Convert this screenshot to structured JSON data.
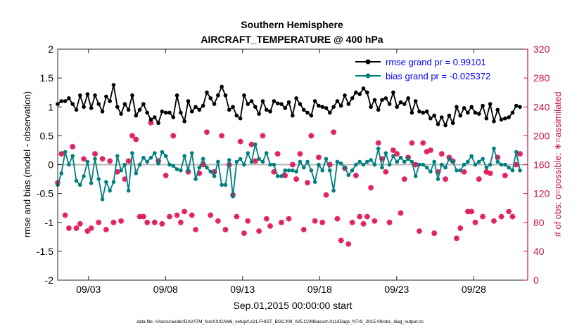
{
  "chart_data": {
    "type": "line",
    "title": "Southern Hemisphere",
    "subtitle": "AIRCRAFT_TEMPERATURE @ 400 hPa",
    "xlabel": "Sep.01,2015 00:00:00 start",
    "ylabel_left": "rmse and bias (model - observation)",
    "ylabel_right": "# of obs: o=possible; ∗=assimilated",
    "footnote": "data file: /Users/raeder/DAI/ATM_forcXX/CAM6_setup/f.e21.FHIST_BGC.f09_025.CAM6assim.011/Diags_NTrS_2015-09/obs_diag_output.nc",
    "x_day_range": [
      1.0,
      31.5
    ],
    "ylim_left": [
      -2,
      2
    ],
    "ylim_right": [
      0,
      320
    ],
    "yticks_left": [
      "-2",
      "-1.5",
      "-1",
      "-0.5",
      "0",
      "0.5",
      "1",
      "1.5",
      "2"
    ],
    "yticks_right": [
      "0",
      "40",
      "80",
      "120",
      "160",
      "200",
      "240",
      "280",
      "320"
    ],
    "xticks": [
      {
        "day": 3,
        "label": "09/03"
      },
      {
        "day": 8,
        "label": "09/08"
      },
      {
        "day": 13,
        "label": "09/13"
      },
      {
        "day": 18,
        "label": "09/18"
      },
      {
        "day": 23,
        "label": "09/23"
      },
      {
        "day": 28,
        "label": "09/28"
      }
    ],
    "colors": {
      "rmse": "#000000",
      "bias": "#007f7f",
      "obs": "#e0185c",
      "right_axis": "#c8104f",
      "zero_line": "#b4b4b4",
      "legend_text": "#0000ff"
    },
    "series": [
      {
        "name": "rmse grand pr = 0.99101",
        "axis": "left",
        "marker": "circle",
        "values": [
          1.05,
          1.1,
          1.1,
          1.15,
          1.05,
          0.95,
          1.2,
          1.0,
          1.22,
          0.98,
          1.2,
          1.05,
          0.92,
          1.18,
          1.1,
          1.38,
          1.0,
          0.88,
          1.05,
          0.95,
          1.2,
          0.85,
          0.95,
          1.05,
          0.9,
          0.78,
          0.82,
          0.72,
          0.92,
          0.9,
          0.9,
          0.82,
          1.2,
          0.9,
          0.75,
          1.1,
          0.92,
          1.0,
          0.95,
          1.02,
          1.25,
          1.15,
          1.05,
          1.2,
          1.35,
          1.2,
          0.95,
          1.0,
          0.85,
          0.8,
          1.2,
          1.05,
          1.1,
          1.0,
          0.88,
          1.1,
          0.95,
          0.92,
          1.1,
          1.06,
          1.05,
          0.98,
          1.08,
          0.85,
          1.15,
          1.05,
          0.95,
          0.9,
          0.85,
          1.1,
          1.02,
          1.0,
          0.98,
          0.9,
          1.0,
          1.1,
          1.02,
          1.2,
          1.05,
          1.15,
          1.25,
          1.22,
          1.32,
          1.25,
          1.0,
          1.12,
          0.95,
          1.12,
          1.15,
          1.05,
          1.25,
          1.0,
          1.08,
          1.05,
          1.15,
          0.9,
          1.1,
          0.92,
          0.9,
          0.92,
          0.8,
          0.85,
          0.7,
          0.82,
          0.68,
          0.85,
          0.72,
          1.0,
          0.85,
          0.98,
          0.9,
          1.0,
          0.9,
          0.88,
          1.02,
          0.8,
          1.05,
          0.75,
          0.95,
          0.78,
          0.8,
          0.82,
          0.9,
          1.02,
          1.0
        ]
      },
      {
        "name": "bias grand pr = -0.025372",
        "axis": "left",
        "marker": "circle",
        "values": [
          -0.35,
          -0.15,
          0.22,
          0.0,
          0.15,
          -0.28,
          -0.35,
          -0.2,
          0.05,
          -0.32,
          0.1,
          -0.25,
          -0.6,
          -0.3,
          -0.45,
          -0.3,
          0.15,
          -0.1,
          0.0,
          -0.45,
          0.2,
          -0.15,
          0.0,
          0.12,
          0.05,
          0.12,
          0.2,
          0.02,
          0.22,
          0.15,
          0.0,
          -0.02,
          -0.08,
          -0.1,
          0.15,
          -0.1,
          0.2,
          -0.25,
          -0.05,
          0.1,
          -0.05,
          -0.12,
          -0.2,
          0.05,
          -0.35,
          -0.35,
          0.08,
          -0.55,
          0.05,
          0.1,
          0.0,
          0.2,
          0.05,
          0.35,
          0.1,
          0.05,
          0.2,
          0.0,
          0.0,
          -0.2,
          -0.2,
          -0.1,
          -0.1,
          -0.1,
          -0.12,
          0.05,
          -0.05,
          0.05,
          -0.1,
          -0.3,
          0.0,
          -0.1,
          0.1,
          -0.1,
          -0.45,
          0.05,
          0.02,
          -0.05,
          -0.18,
          -0.1,
          0.0,
          0.05,
          0.0,
          0.05,
          0.08,
          0.0,
          0.28,
          -0.05,
          0.2,
          0.0,
          0.15,
          0.05,
          0.12,
          0.05,
          0.1,
          0.05,
          -0.2,
          0.0,
          0.0,
          -0.05,
          -0.12,
          0.05,
          -0.25,
          0.0,
          -0.05,
          0.1,
          0.05,
          -0.1,
          -0.1,
          0.0,
          0.05,
          0.15,
          0.0,
          0.05,
          0.1,
          -0.05,
          0.0,
          0.28,
          0.05,
          0.0,
          0.0,
          -0.05,
          -0.1,
          0.22,
          -0.1
        ]
      },
      {
        "name": "possible obs",
        "axis": "right",
        "marker": "circle",
        "values": [
          135,
          175,
          90,
          72,
          185,
          72,
          78,
          168,
          68,
          72,
          175,
          80,
          168,
          70,
          165,
          80,
          150,
          82,
          140,
          165,
          200,
          195,
          88,
          88,
          80,
          218,
          80,
          165,
          78,
          145,
          88,
          200,
          90,
          80,
          95,
          150,
          90,
          70,
          148,
          160,
          205,
          90,
          150,
          82,
          200,
          70,
          160,
          118,
          88,
          192,
          65,
          82,
          188,
          165,
          68,
          200,
          85,
          75,
          150,
          175,
          80,
          145,
          85,
          160,
          140,
          175,
          70,
          135,
          200,
          82,
          170,
          80,
          118,
          160,
          205,
          85,
          55,
          155,
          50,
          80,
          145,
          88,
          78,
          88,
          128,
          82,
          190,
          168,
          150,
          80,
          180,
          175,
          93,
          140,
          170,
          190,
          160,
          68,
          190,
          178,
          180,
          65,
          150,
          175,
          140,
          170,
          165,
          58,
          72,
          150,
          95,
          95,
          80,
          140,
          88,
          150,
          148,
          82,
          170,
          88,
          145,
          95,
          88,
          160,
          175
        ]
      },
      {
        "name": "assimilated obs",
        "axis": "right",
        "marker": "star",
        "values": [
          135,
          175,
          90,
          72,
          185,
          72,
          78,
          168,
          68,
          72,
          175,
          80,
          168,
          70,
          165,
          80,
          150,
          82,
          140,
          165,
          200,
          195,
          88,
          88,
          80,
          218,
          80,
          165,
          78,
          145,
          88,
          200,
          90,
          80,
          95,
          150,
          90,
          70,
          148,
          160,
          205,
          90,
          150,
          82,
          200,
          70,
          160,
          118,
          88,
          192,
          65,
          82,
          188,
          165,
          68,
          200,
          85,
          75,
          150,
          175,
          80,
          145,
          85,
          160,
          140,
          175,
          70,
          135,
          200,
          82,
          170,
          80,
          118,
          160,
          205,
          85,
          55,
          155,
          50,
          80,
          145,
          88,
          78,
          88,
          128,
          82,
          190,
          168,
          150,
          80,
          180,
          175,
          93,
          140,
          170,
          190,
          160,
          68,
          190,
          178,
          180,
          65,
          150,
          175,
          140,
          170,
          165,
          58,
          72,
          150,
          95,
          95,
          80,
          140,
          88,
          150,
          148,
          82,
          170,
          88,
          145,
          95,
          88,
          160,
          175
        ]
      }
    ],
    "legend": {
      "position": "top-right",
      "entries": [
        "rmse grand pr = 0.99101",
        "bias grand pr = -0.025372"
      ]
    },
    "zero_line": 0,
    "grid": false
  }
}
